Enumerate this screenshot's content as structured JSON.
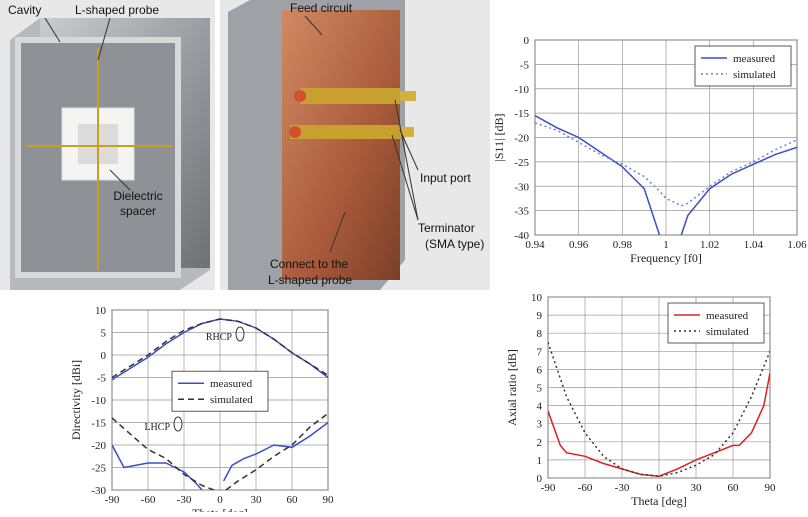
{
  "photos": {
    "labels": [
      "Cavity",
      "L-shaped probe",
      "Feed circuit",
      "Dielectric",
      "spacer",
      "Input port",
      "Terminator",
      "(SMA type)",
      "Connect to the",
      "L-shaped probe"
    ]
  },
  "chart_data": [
    {
      "type": "line",
      "xlabel": "Frequency [f0]",
      "ylabel": "|S11| [dB]",
      "xlim": [
        0.94,
        1.06
      ],
      "ylim": [
        -40,
        0
      ],
      "xticks": [
        0.94,
        0.96,
        0.98,
        1,
        1.02,
        1.04,
        1.06
      ],
      "yticks": [
        -40,
        -35,
        -30,
        -25,
        -20,
        -15,
        -10,
        -5,
        0
      ],
      "grid": true,
      "legend": "upper right",
      "series": [
        {
          "name": "measured",
          "color": "#3a4fc4",
          "style": "solid",
          "x": [
            0.94,
            0.95,
            0.96,
            0.97,
            0.98,
            0.99,
            0.997,
            1.0,
            1.007,
            1.01,
            1.02,
            1.03,
            1.04,
            1.05,
            1.06
          ],
          "values": [
            -15.5,
            -18,
            -20,
            -23,
            -26,
            -30.5,
            -40,
            null,
            -40,
            -36,
            -30.5,
            -27.5,
            -25.5,
            -23.5,
            -22
          ]
        },
        {
          "name": "simulated",
          "color": "#6f7fd6",
          "style": "dotted",
          "x": [
            0.94,
            0.95,
            0.96,
            0.97,
            0.98,
            0.99,
            0.997,
            1.0,
            1.007,
            1.01,
            1.02,
            1.03,
            1.04,
            1.05,
            1.06
          ],
          "values": [
            -17,
            -18.5,
            -21,
            -23.5,
            -25.5,
            -28,
            -31,
            -32.5,
            -34,
            -33.5,
            -30,
            -27,
            -25,
            -22.5,
            -20.5
          ]
        }
      ]
    },
    {
      "type": "line",
      "xlabel": "Theta [deg]",
      "ylabel": "Directivity [dBi]",
      "xlim": [
        -90,
        90
      ],
      "ylim": [
        -30,
        10
      ],
      "xticks": [
        -90,
        -60,
        -30,
        0,
        30,
        60,
        90
      ],
      "yticks": [
        -30,
        -25,
        -20,
        -15,
        -10,
        -5,
        0,
        5,
        10
      ],
      "grid": true,
      "legend": "center",
      "annotations": [
        "RHCP",
        "LHCP"
      ],
      "series": [
        {
          "name": "measured",
          "color": "#3a4fc4",
          "style": "solid",
          "x": [
            -90,
            -75,
            -60,
            -45,
            -30,
            -15,
            0,
            15,
            30,
            45,
            60,
            75,
            90
          ],
          "values": [
            -5.5,
            -3,
            -0.5,
            2.5,
            5,
            7,
            8,
            7.5,
            6,
            3.5,
            0.5,
            -2,
            -5
          ]
        },
        {
          "name": "simulated",
          "color": "#333333",
          "style": "dashed",
          "x": [
            -90,
            -75,
            -60,
            -45,
            -30,
            -15,
            0,
            15,
            30,
            45,
            60,
            75,
            90
          ],
          "values": [
            -5,
            -2.5,
            0,
            3,
            5.5,
            7,
            8,
            7.5,
            6,
            3.5,
            0.5,
            -2,
            -4.5
          ]
        },
        {
          "color": "#3a4fc4",
          "style": "solid",
          "x": [
            -90,
            -80,
            -70,
            -60,
            -45,
            -30,
            -20,
            -15,
            -5,
            3,
            10,
            20,
            30,
            45,
            60,
            75,
            90
          ],
          "values": [
            -20,
            -25,
            -24.5,
            -24,
            -24,
            -26,
            -28.5,
            -30,
            null,
            -28,
            -24.5,
            -23,
            -22,
            -20,
            -20.5,
            -18,
            -15
          ]
        },
        {
          "color": "#333333",
          "style": "dashed",
          "x": [
            -90,
            -75,
            -60,
            -45,
            -30,
            -15,
            -5,
            0,
            5,
            15,
            30,
            45,
            60,
            75,
            90
          ],
          "values": [
            -14,
            -17.5,
            -21,
            -23,
            -26.5,
            -29,
            -30,
            null,
            -30,
            -28,
            -25.5,
            -22.5,
            -20,
            -16,
            -13
          ]
        }
      ]
    },
    {
      "type": "line",
      "xlabel": "Theta [deg]",
      "ylabel": "Axial ratio [dB]",
      "xlim": [
        -90,
        90
      ],
      "ylim": [
        0,
        10
      ],
      "xticks": [
        -90,
        -60,
        -30,
        0,
        30,
        60,
        90
      ],
      "yticks": [
        0,
        1,
        2,
        3,
        4,
        5,
        6,
        7,
        8,
        9,
        10
      ],
      "grid": true,
      "legend": "upper right",
      "series": [
        {
          "name": "measured",
          "color": "#e02020",
          "style": "solid",
          "x": [
            -90,
            -80,
            -75,
            -60,
            -45,
            -30,
            -15,
            0,
            15,
            30,
            45,
            60,
            65,
            75,
            85,
            90
          ],
          "values": [
            3.7,
            1.8,
            1.4,
            1.2,
            0.8,
            0.5,
            0.2,
            0.1,
            0.5,
            1,
            1.4,
            1.8,
            1.8,
            2.5,
            4,
            5.8
          ]
        },
        {
          "name": "simulated",
          "color": "#333333",
          "style": "dotted",
          "x": [
            -90,
            -75,
            -60,
            -45,
            -30,
            -15,
            0,
            15,
            30,
            45,
            60,
            75,
            90
          ],
          "values": [
            7.5,
            4.5,
            2.5,
            1.2,
            0.5,
            0.2,
            0.1,
            0.3,
            0.7,
            1.3,
            2.5,
            4.5,
            7
          ]
        }
      ]
    }
  ]
}
